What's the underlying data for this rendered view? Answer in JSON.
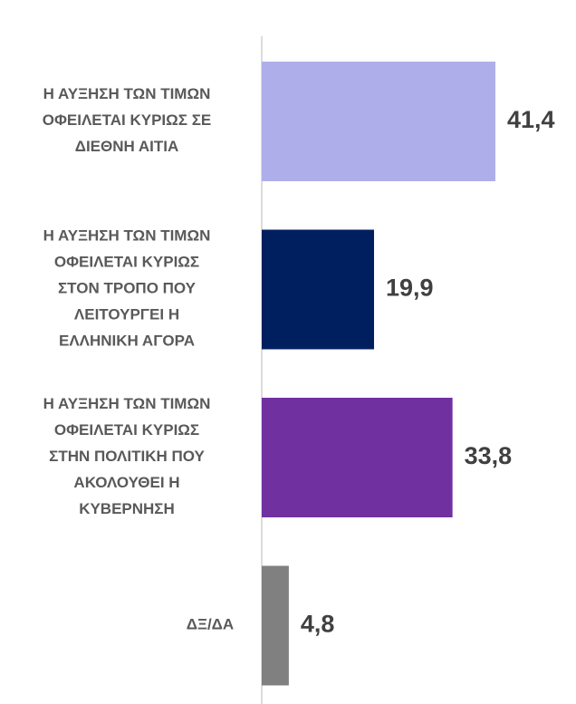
{
  "chart_data": {
    "type": "bar",
    "orientation": "horizontal",
    "categories": [
      "Η ΑΥΞΗΣΗ ΤΩΝ ΤΙΜΩΝ\nΟΦΕΙΛΕΤΑΙ ΚΥΡΙΩΣ ΣΕ\nΔΙΕΘΝΗ ΑΙΤΙΑ",
      "Η ΑΥΞΗΣΗ ΤΩΝ ΤΙΜΩΝ\nΟΦΕΙΛΕΤΑΙ ΚΥΡΙΩΣ\nΣΤΟΝ ΤΡΟΠΟ ΠΟΥ\nΛΕΙΤΟΥΡΓΕΙ Η\nΕΛΛΗΝΙΚΗ ΑΓΟΡΑ",
      "Η ΑΥΞΗΣΗ ΤΩΝ ΤΙΜΩΝ\nΟΦΕΙΛΕΤΑΙ ΚΥΡΙΩΣ\nΣΤΗΝ ΠΟΛΙΤΙΚΗ ΠΟΥ\nΑΚΟΛΟΥΘΕΙ Η\nΚΥΒΕΡΝΗΣΗ",
      "ΔΞ/ΔΑ"
    ],
    "values": [
      41.4,
      19.9,
      33.8,
      4.8
    ],
    "value_labels": [
      "41,4",
      "19,9",
      "33,8",
      "4,8"
    ],
    "colors": [
      "#aeaeea",
      "#001f5f",
      "#7030a0",
      "#808080"
    ]
  }
}
